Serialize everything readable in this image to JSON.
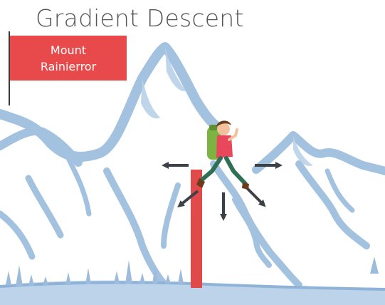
{
  "title": "Gradient Descent",
  "flag": {
    "line1": "Mount",
    "line2": "Rainierror"
  },
  "colors": {
    "mountain": "#9fc0df",
    "mountain_dark": "#7fa6cc",
    "flag": "#e84a4b",
    "error_bar": "#e04a4a",
    "arrow": "#3c4148",
    "shirt": "#e8475c",
    "backpack": "#7db340",
    "pants": "#2f6f56"
  },
  "arrows": [
    "left",
    "down-left",
    "down",
    "down-right",
    "right"
  ]
}
